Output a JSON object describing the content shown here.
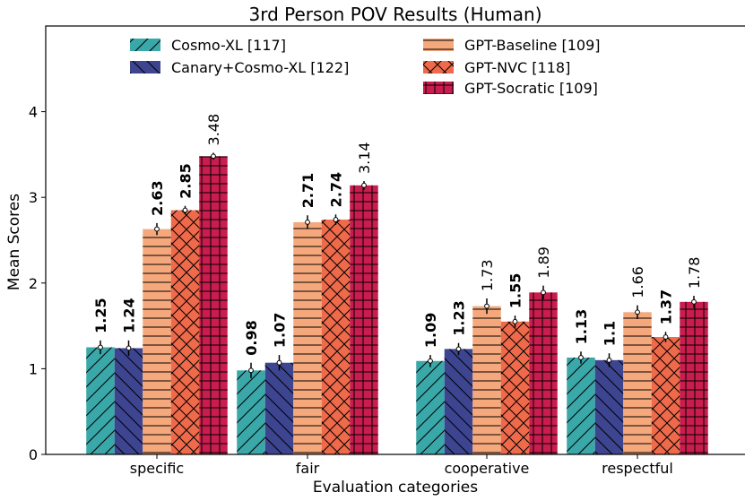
{
  "chart_data": {
    "type": "bar",
    "title": "3rd Person POV Results (Human)",
    "xlabel": "Evaluation categories",
    "ylabel": "Mean Scores",
    "ylim": [
      0,
      5
    ],
    "yticks": [
      "0",
      "1",
      "2",
      "3",
      "4"
    ],
    "categories": [
      "specific",
      "fair",
      "cooperative",
      "respectful"
    ],
    "legend_position": "top-center",
    "series": [
      {
        "name": "Cosmo-XL [117]",
        "color": "#3aa7a8",
        "hatch": "diag-right",
        "values": [
          1.25,
          0.98,
          1.09,
          1.13
        ],
        "errors": [
          0.08,
          0.09,
          0.07,
          0.07
        ],
        "labels": [
          "1.25",
          "0.98",
          "1.09",
          "1.13"
        ],
        "bold": [
          true,
          true,
          true,
          true
        ]
      },
      {
        "name": "Canary+Cosmo-XL [122]",
        "color": "#3d4490",
        "hatch": "diag-left",
        "values": [
          1.24,
          1.07,
          1.23,
          1.1
        ],
        "errors": [
          0.09,
          0.09,
          0.07,
          0.08
        ],
        "labels": [
          "1.24",
          "1.07",
          "1.23",
          "1.1"
        ],
        "bold": [
          true,
          true,
          true,
          true
        ]
      },
      {
        "name": "GPT-Baseline [109]",
        "color": "#f6a87d",
        "hatch": "horizontal",
        "values": [
          2.63,
          2.71,
          1.73,
          1.66
        ],
        "errors": [
          0.07,
          0.08,
          0.09,
          0.08
        ],
        "labels": [
          "2.63",
          "2.71",
          "1.73",
          "1.66"
        ],
        "bold": [
          true,
          true,
          false,
          false
        ]
      },
      {
        "name": "GPT-NVC [118]",
        "color": "#ee6a4b",
        "hatch": "cross",
        "values": [
          2.85,
          2.74,
          1.55,
          1.37
        ],
        "errors": [
          0.05,
          0.06,
          0.07,
          0.06
        ],
        "labels": [
          "2.85",
          "2.74",
          "1.55",
          "1.37"
        ],
        "bold": [
          true,
          true,
          true,
          true
        ]
      },
      {
        "name": "GPT-Socratic [109]",
        "color": "#c81d4e",
        "hatch": "grid",
        "values": [
          3.48,
          3.14,
          1.89,
          1.78
        ],
        "errors": [
          0.04,
          0.05,
          0.08,
          0.07
        ],
        "labels": [
          "3.48",
          "3.14",
          "1.89",
          "1.78"
        ],
        "bold": [
          false,
          false,
          false,
          false
        ]
      }
    ]
  }
}
